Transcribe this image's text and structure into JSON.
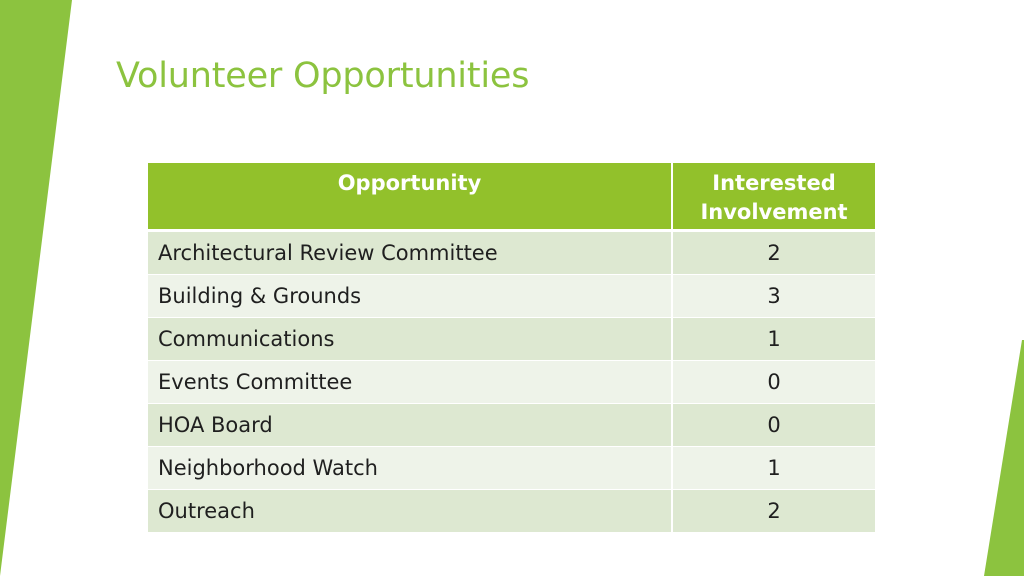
{
  "slide": {
    "title": "Volunteer Opportunities",
    "accent_color": "#8cc33f"
  },
  "table": {
    "headers": {
      "opportunity": "Opportunity",
      "interested_line1": "Interested",
      "interested_line2": "Involvement"
    },
    "rows": [
      {
        "opportunity": "Architectural Review Committee",
        "interested": "2"
      },
      {
        "opportunity": "Building & Grounds",
        "interested": "3"
      },
      {
        "opportunity": "Communications",
        "interested": "1"
      },
      {
        "opportunity": "Events Committee",
        "interested": "0"
      },
      {
        "opportunity": "HOA Board",
        "interested": "0"
      },
      {
        "opportunity": "Neighborhood Watch",
        "interested": "1"
      },
      {
        "opportunity": "Outreach",
        "interested": "2"
      }
    ],
    "header_color": "#92c12b",
    "row_color_odd": "#dde8d1",
    "row_color_even": "#eef3e9"
  }
}
